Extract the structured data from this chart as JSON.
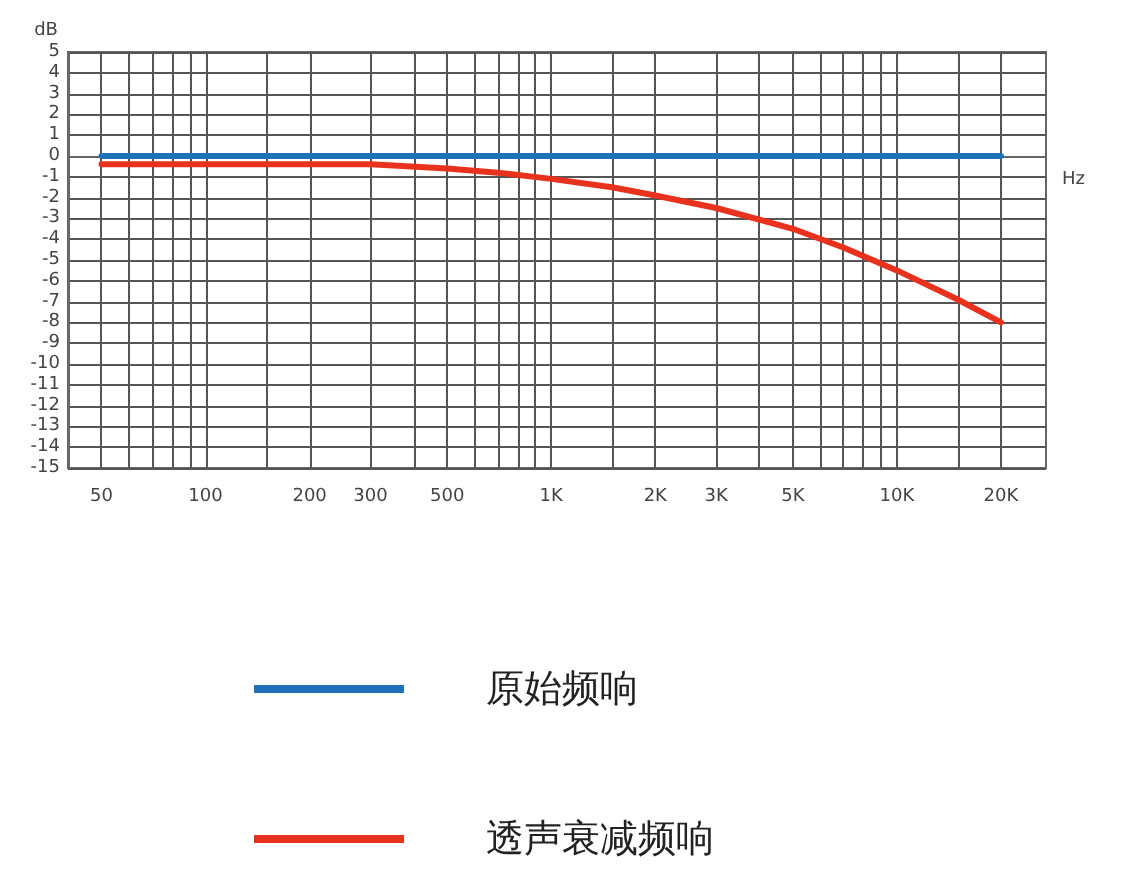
{
  "chart_data": {
    "type": "line",
    "xlabel": "Hz",
    "ylabel": "dB",
    "log": "x",
    "grid": true,
    "legend": "bottom",
    "marker": "none",
    "line_style": "solid",
    "xlim": [
      40,
      27000
    ],
    "xticks": [
      50,
      {
        "value": 60,
        "label": null
      },
      {
        "value": 70,
        "label": null
      },
      {
        "value": 80,
        "label": null
      },
      {
        "value": 90,
        "label": null
      },
      100,
      {
        "value": 150,
        "label": null
      },
      200,
      300,
      {
        "value": 400,
        "label": null
      },
      500,
      {
        "value": 600,
        "label": null
      },
      {
        "value": 700,
        "label": null
      },
      {
        "value": 800,
        "label": null
      },
      {
        "value": 900,
        "label": null
      },
      {
        "value": 1000,
        "label": "1K"
      },
      {
        "value": 1500,
        "label": null
      },
      {
        "value": 2000,
        "label": "2K"
      },
      {
        "value": 3000,
        "label": "3K"
      },
      {
        "value": 4000,
        "label": null
      },
      {
        "value": 5000,
        "label": "5K"
      },
      {
        "value": 6000,
        "label": null
      },
      {
        "value": 7000,
        "label": null
      },
      {
        "value": 8000,
        "label": null
      },
      {
        "value": 9000,
        "label": null
      },
      {
        "value": 10000,
        "label": "10K"
      },
      {
        "value": 15000,
        "label": null
      },
      {
        "value": 20000,
        "label": "20K"
      }
    ],
    "ylim": [
      -15,
      5
    ],
    "yticks": [
      -15,
      -14,
      -13,
      -12,
      -11,
      -10,
      -9,
      -8,
      -7,
      -6,
      -5,
      -4,
      -3,
      -2,
      -1,
      0,
      1,
      2,
      3,
      4,
      5
    ],
    "series": [
      {
        "name": "原始频响",
        "color": "#1f72b8",
        "x": [
          50,
          20000
        ],
        "values": [
          0,
          0
        ]
      },
      {
        "name": "透声衰减频响",
        "color": "#e8321e",
        "x": [
          50,
          300,
          500,
          700,
          1000,
          1500,
          2000,
          3000,
          5000,
          7000,
          10000,
          15000,
          20000
        ],
        "values": [
          -0.4,
          -0.4,
          -0.6,
          -0.8,
          -1.1,
          -1.5,
          -1.9,
          -2.5,
          -3.5,
          -4.4,
          -5.5,
          -6.9,
          -8
        ]
      }
    ]
  }
}
